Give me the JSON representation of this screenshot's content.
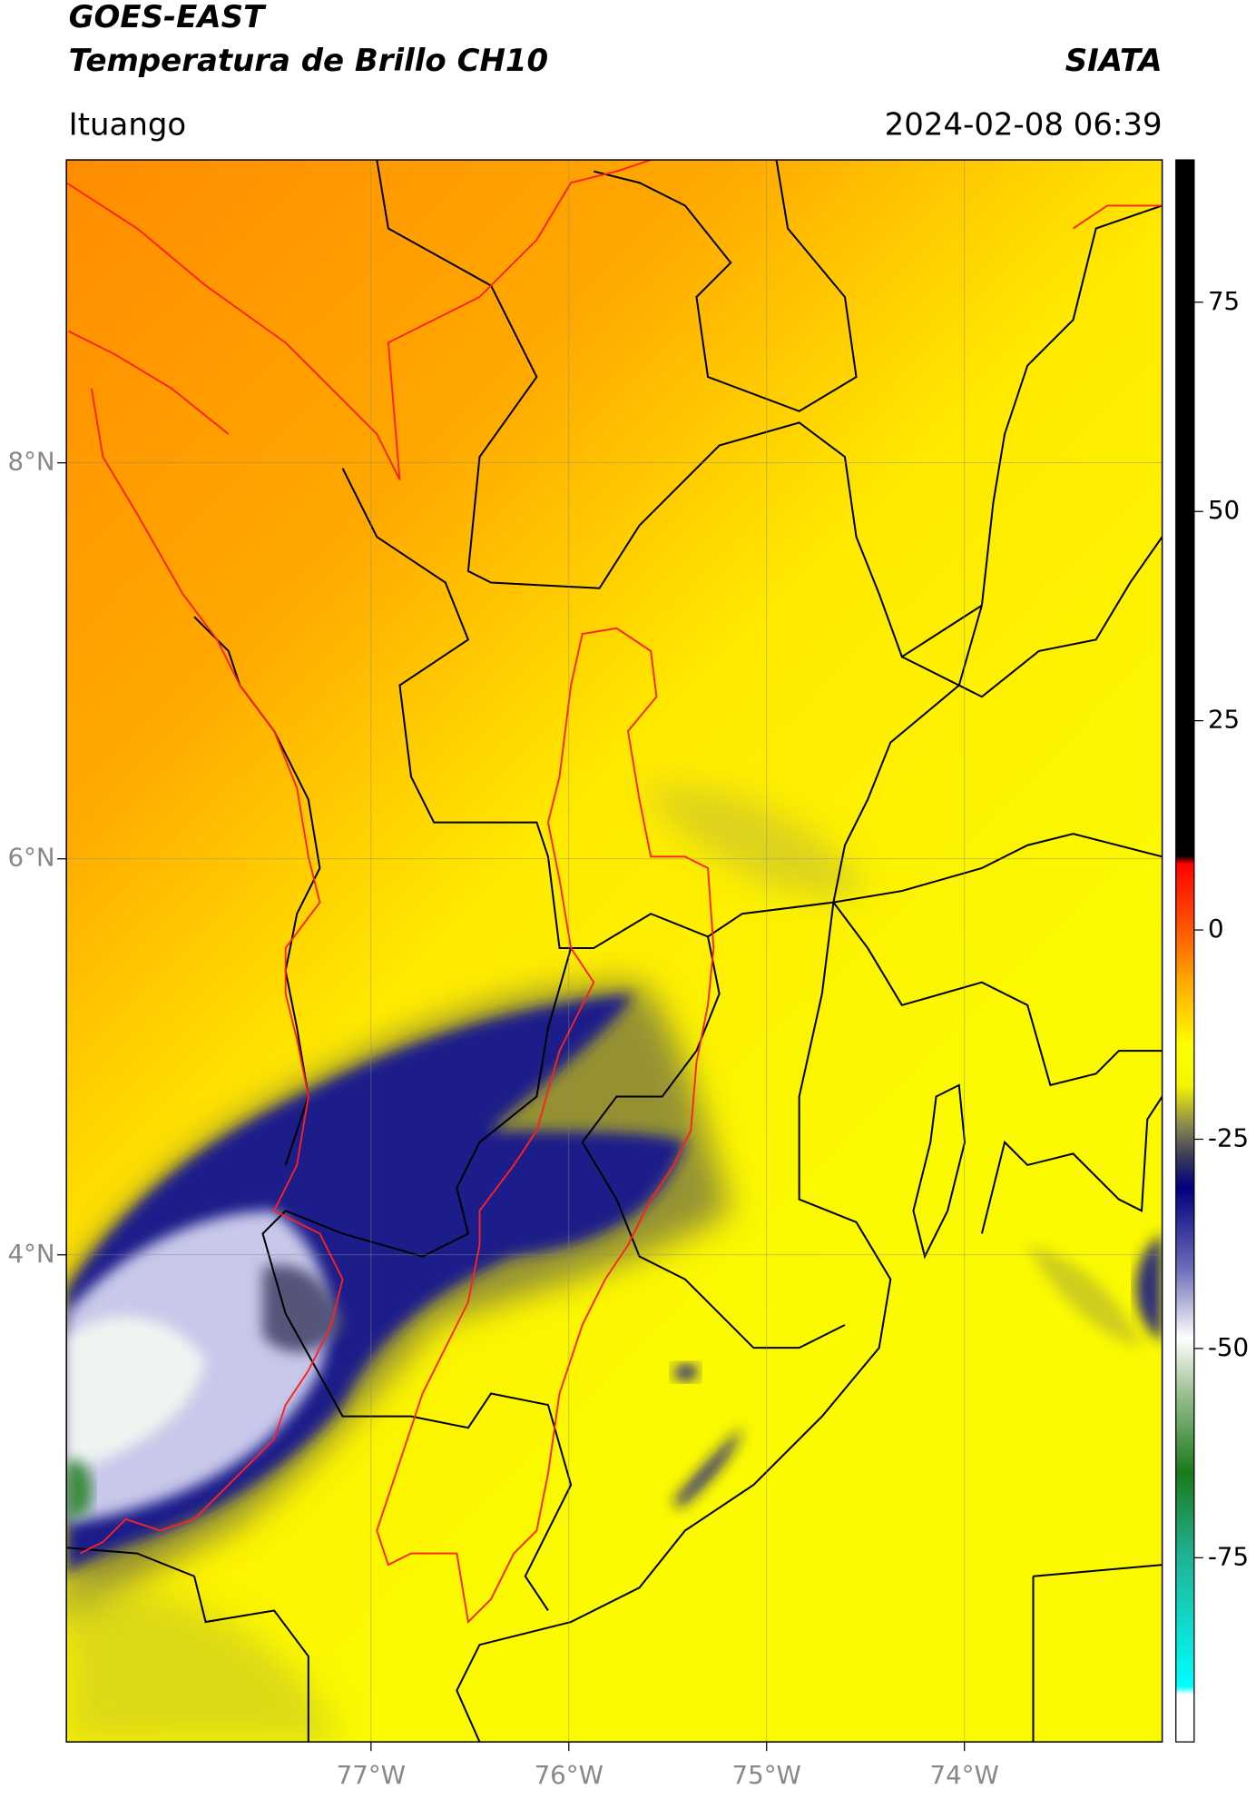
{
  "chart_data": {
    "type": "map",
    "title": "GOES-EAST",
    "subtitle": "Temperatura de Brillo CH10",
    "org": "SIATA",
    "location": "Ituango",
    "timestamp": "2024-02-08 06:39",
    "xlim": [
      -78.54,
      -73.0
    ],
    "ylim": [
      1.54,
      9.53
    ],
    "xticks": [
      {
        "value": -77,
        "label": "77°W"
      },
      {
        "value": -76,
        "label": "76°W"
      },
      {
        "value": -75,
        "label": "75°W"
      },
      {
        "value": -74,
        "label": "74°W"
      }
    ],
    "yticks": [
      {
        "value": 4,
        "label": "4°N"
      },
      {
        "value": 6,
        "label": "6°N"
      },
      {
        "value": 8,
        "label": "8°N"
      }
    ],
    "grid": true,
    "colorbar": {
      "clim": [
        -97,
        92
      ],
      "ticks": [
        -75,
        -50,
        -25,
        0,
        25,
        50,
        75
      ]
    }
  }
}
